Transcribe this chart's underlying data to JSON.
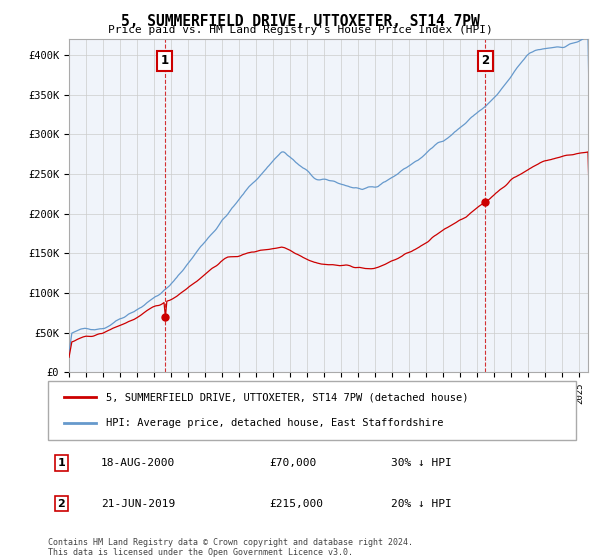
{
  "title": "5, SUMMERFIELD DRIVE, UTTOXETER, ST14 7PW",
  "subtitle": "Price paid vs. HM Land Registry's House Price Index (HPI)",
  "ylim": [
    0,
    420000
  ],
  "yticks": [
    0,
    50000,
    100000,
    150000,
    200000,
    250000,
    300000,
    350000,
    400000
  ],
  "xlim_start": 1995.0,
  "xlim_end": 2025.5,
  "sale1": {
    "date_x": 2000.63,
    "price": 70000,
    "label": "1",
    "text": "18-AUG-2000",
    "amount": "£70,000",
    "pct": "30% ↓ HPI"
  },
  "sale2": {
    "date_x": 2019.47,
    "price": 215000,
    "label": "2",
    "text": "21-JUN-2019",
    "amount": "£215,000",
    "pct": "20% ↓ HPI"
  },
  "legend_line1": "5, SUMMERFIELD DRIVE, UTTOXETER, ST14 7PW (detached house)",
  "legend_line2": "HPI: Average price, detached house, East Staffordshire",
  "footer": "Contains HM Land Registry data © Crown copyright and database right 2024.\nThis data is licensed under the Open Government Licence v3.0.",
  "red_color": "#cc0000",
  "blue_color": "#6699cc",
  "grid_color": "#cccccc",
  "annotation_box_color": "#cc0000",
  "bg_color": "#f0f4fa"
}
